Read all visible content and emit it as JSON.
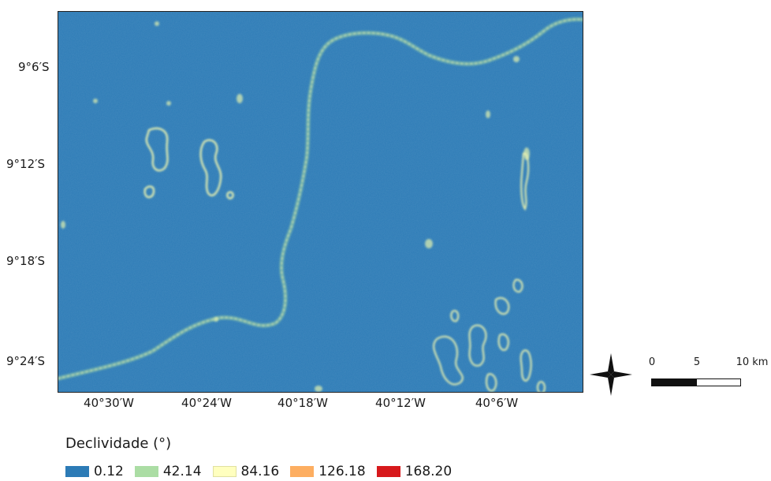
{
  "map": {
    "latitude_labels": [
      "9°6′S",
      "9°12′S",
      "9°18′S",
      "9°24′S"
    ],
    "longitude_labels": [
      "40°30′W",
      "40°24′W",
      "40°18′W",
      "40°12′W",
      "40°6′W"
    ],
    "base_color": "#2c7bb6"
  },
  "scalebar": {
    "labels": [
      "0",
      "5",
      "10 km"
    ]
  },
  "legend": {
    "title": "Declividade (°)",
    "items": [
      {
        "label": "0.12",
        "color": "#2c7bb6"
      },
      {
        "label": "42.14",
        "color": "#abdda4"
      },
      {
        "label": "84.16",
        "color": "#ffffbf"
      },
      {
        "label": "126.18",
        "color": "#fdae61"
      },
      {
        "label": "168.20",
        "color": "#d7191c"
      }
    ]
  }
}
